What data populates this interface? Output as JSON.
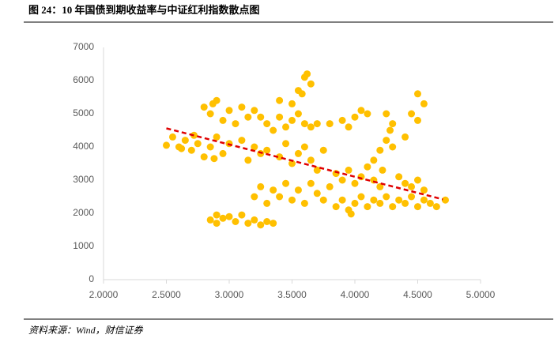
{
  "chart_data": {
    "type": "scatter",
    "title": "图 24：10 年国债到期收益率与中证红利指数散点图",
    "source": "资料来源：Wind，财信证券",
    "color": "#ffc000",
    "x": [
      2.5,
      2.55,
      2.6,
      2.65,
      2.7,
      2.75,
      2.8,
      2.85,
      2.9,
      2.95,
      3.0,
      2.62,
      2.72,
      2.88,
      2.8,
      2.85,
      2.9,
      2.95,
      3.0,
      3.05,
      3.1,
      3.15,
      3.2,
      2.87,
      3.25,
      3.3,
      3.4,
      3.45,
      3.5,
      3.55,
      3.6,
      3.35,
      3.65,
      3.5,
      3.55,
      3.6,
      3.62,
      3.65,
      3.58,
      3.4,
      3.7,
      3.8,
      3.9,
      4.0,
      4.05,
      4.1,
      3.95,
      3.1,
      3.2,
      3.3,
      3.4,
      3.45,
      3.5,
      3.55,
      3.6,
      3.65,
      3.7,
      3.75,
      3.25,
      3.15,
      3.2,
      3.25,
      3.3,
      3.35,
      3.4,
      3.45,
      3.5,
      3.55,
      3.6,
      3.65,
      3.7,
      3.75,
      3.8,
      2.85,
      2.9,
      2.95,
      3.0,
      3.05,
      3.1,
      3.15,
      3.2,
      3.25,
      3.3,
      2.9,
      3.35,
      3.85,
      3.9,
      3.95,
      4.0,
      4.05,
      4.1,
      4.15,
      4.2,
      3.85,
      3.9,
      3.95,
      4.0,
      4.05,
      4.1,
      4.15,
      4.2,
      4.25,
      4.3,
      4.35,
      4.4,
      4.45,
      4.5,
      4.55,
      4.6,
      4.65,
      4.72,
      3.97,
      4.15,
      4.2,
      4.25,
      4.28,
      4.3,
      4.22,
      4.25,
      4.3,
      4.35,
      4.4,
      4.45,
      4.5,
      4.55,
      4.5,
      4.55,
      4.45,
      4.5,
      4.4
    ],
    "y": [
      4050,
      4300,
      4000,
      4200,
      3900,
      4100,
      3700,
      4000,
      4300,
      3800,
      4100,
      3950,
      4350,
      3650,
      5200,
      5000,
      5400,
      4800,
      5100,
      4700,
      5200,
      4900,
      5100,
      5300,
      4900,
      4700,
      4900,
      4600,
      4800,
      5000,
      4700,
      4500,
      4600,
      5300,
      5700,
      6100,
      6200,
      5900,
      5600,
      5400,
      4700,
      4700,
      4800,
      4900,
      5100,
      5000,
      4600,
      4200,
      4000,
      3900,
      3700,
      4100,
      3500,
      3800,
      4000,
      3600,
      3300,
      3900,
      3800,
      3600,
      2500,
      2800,
      2300,
      2700,
      2500,
      2900,
      2400,
      2700,
      2300,
      2900,
      2600,
      2400,
      2800,
      1800,
      1950,
      1850,
      1900,
      1750,
      1950,
      1700,
      1800,
      1650,
      1750,
      1700,
      1700,
      3200,
      3000,
      3300,
      2900,
      3100,
      3400,
      3000,
      2800,
      2200,
      2400,
      2100,
      2300,
      2500,
      2200,
      2400,
      2300,
      2500,
      2200,
      2400,
      2300,
      2500,
      2200,
      2400,
      2300,
      2200,
      2400,
      1980,
      3600,
      3900,
      4200,
      4500,
      4000,
      3300,
      5000,
      4700,
      3100,
      2900,
      2800,
      3000,
      2700,
      5600,
      5300,
      5000,
      4800,
      4300
    ],
    "trendline": {
      "x": [
        2.5,
        4.7
      ],
      "y": [
        4560,
        2420
      ],
      "color": "#e00000"
    },
    "xlim": [
      2.0,
      5.0
    ],
    "xticks": [
      {
        "value": 2.0,
        "label": "2.0000"
      },
      {
        "value": 2.5,
        "label": "2.5000"
      },
      {
        "value": 3.0,
        "label": "3.0000"
      },
      {
        "value": 3.5,
        "label": "3.5000"
      },
      {
        "value": 4.0,
        "label": "4.0000"
      },
      {
        "value": 4.5,
        "label": "4.5000"
      },
      {
        "value": 5.0,
        "label": "5.0000"
      }
    ],
    "ylim": [
      0,
      7000
    ],
    "yticks": [
      0,
      1000,
      2000,
      3000,
      4000,
      5000,
      6000,
      7000
    ]
  }
}
